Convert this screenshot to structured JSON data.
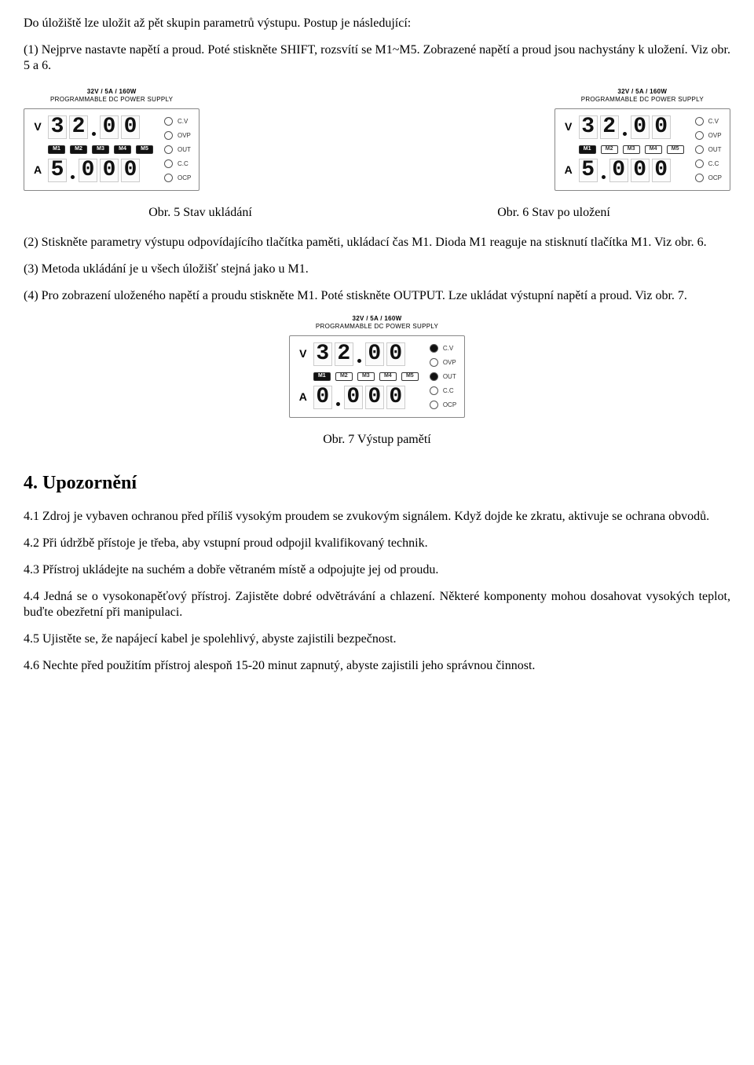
{
  "para1": "Do úložiště lze uložit až pět skupin parametrů výstupu. Postup je následující:",
  "para2": "(1) Nejprve nastavte napětí a proud. Poté stiskněte SHIFT, rozsvítí se M1~M5. Zobrazené napětí a proud jsou nachystány k uložení. Viz obr. 5 a 6.",
  "cap5": "Obr. 5 Stav ukládání",
  "cap6": "Obr. 6 Stav po uložení",
  "para3": "(2) Stiskněte parametry výstupu odpovídajícího tlačítka paměti, ukládací čas M1. Dioda M1 reaguje na stisknutí tlačítka M1. Viz obr. 6.",
  "para4": "(3) Metoda ukládání je u všech úložišť stejná jako u M1.",
  "para5": "(4) Pro zobrazení uloženého napětí a proudu stiskněte M1. Poté stiskněte OUTPUT. Lze ukládat výstupní napětí a proud. Viz obr. 7.",
  "cap7": "Obr. 7 Výstup pamětí",
  "h4": "4. Upozornění",
  "p41": "4.1 Zdroj je vybaven ochranou před příliš vysokým proudem se zvukovým signálem. Když dojde ke zkratu, aktivuje se ochrana obvodů.",
  "p42": "4.2 Při údržbě přístoje je třeba, aby vstupní proud odpojil kvalifikovaný technik.",
  "p43": "4.3 Přístroj ukládejte na suchém a dobře větraném místě a odpojujte jej od proudu.",
  "p44": "4.4 Jedná se o vysokonapěťový přístroj. Zajistěte dobré odvětrávání a chlazení. Některé komponenty mohou dosahovat vysokých teplot, buďte obezřetní při manipulaci.",
  "p45": "4.5 Ujistěte se, že napájecí kabel je spolehlivý, abyste zajistili bezpečnost.",
  "p46": "4.6 Nechte před použitím přístroj alespoň 15-20 minut zapnutý, abyste zajistili jeho správnou činnost.",
  "psu": {
    "header1": "32V / 5A / 160W",
    "header2": "PROGRAMMABLE DC POWER SUPPLY",
    "unitV": "V",
    "unitA": "A",
    "leds": [
      "C.V",
      "OVP",
      "OUT",
      "C.C",
      "OCP"
    ],
    "mem": [
      "M1",
      "M2",
      "M3",
      "M4",
      "M5"
    ]
  },
  "fig5": {
    "volts": [
      "3",
      "2",
      ".",
      "0",
      "0"
    ],
    "amps": [
      "5",
      ".",
      "0",
      "0",
      "0"
    ],
    "mem_active": [
      true,
      true,
      true,
      true,
      true
    ],
    "led_on": [
      false,
      false,
      false,
      false,
      false
    ]
  },
  "fig6": {
    "volts": [
      "3",
      "2",
      ".",
      "0",
      "0"
    ],
    "amps": [
      "5",
      ".",
      "0",
      "0",
      "0"
    ],
    "mem_active": [
      true,
      false,
      false,
      false,
      false
    ],
    "led_on": [
      false,
      false,
      false,
      false,
      false
    ]
  },
  "fig7": {
    "volts": [
      "3",
      "2",
      ".",
      "0",
      "0"
    ],
    "amps": [
      "0",
      ".",
      "0",
      "0",
      "0"
    ],
    "mem_active": [
      true,
      false,
      false,
      false,
      false
    ],
    "led_on": [
      true,
      false,
      true,
      false,
      false
    ]
  }
}
